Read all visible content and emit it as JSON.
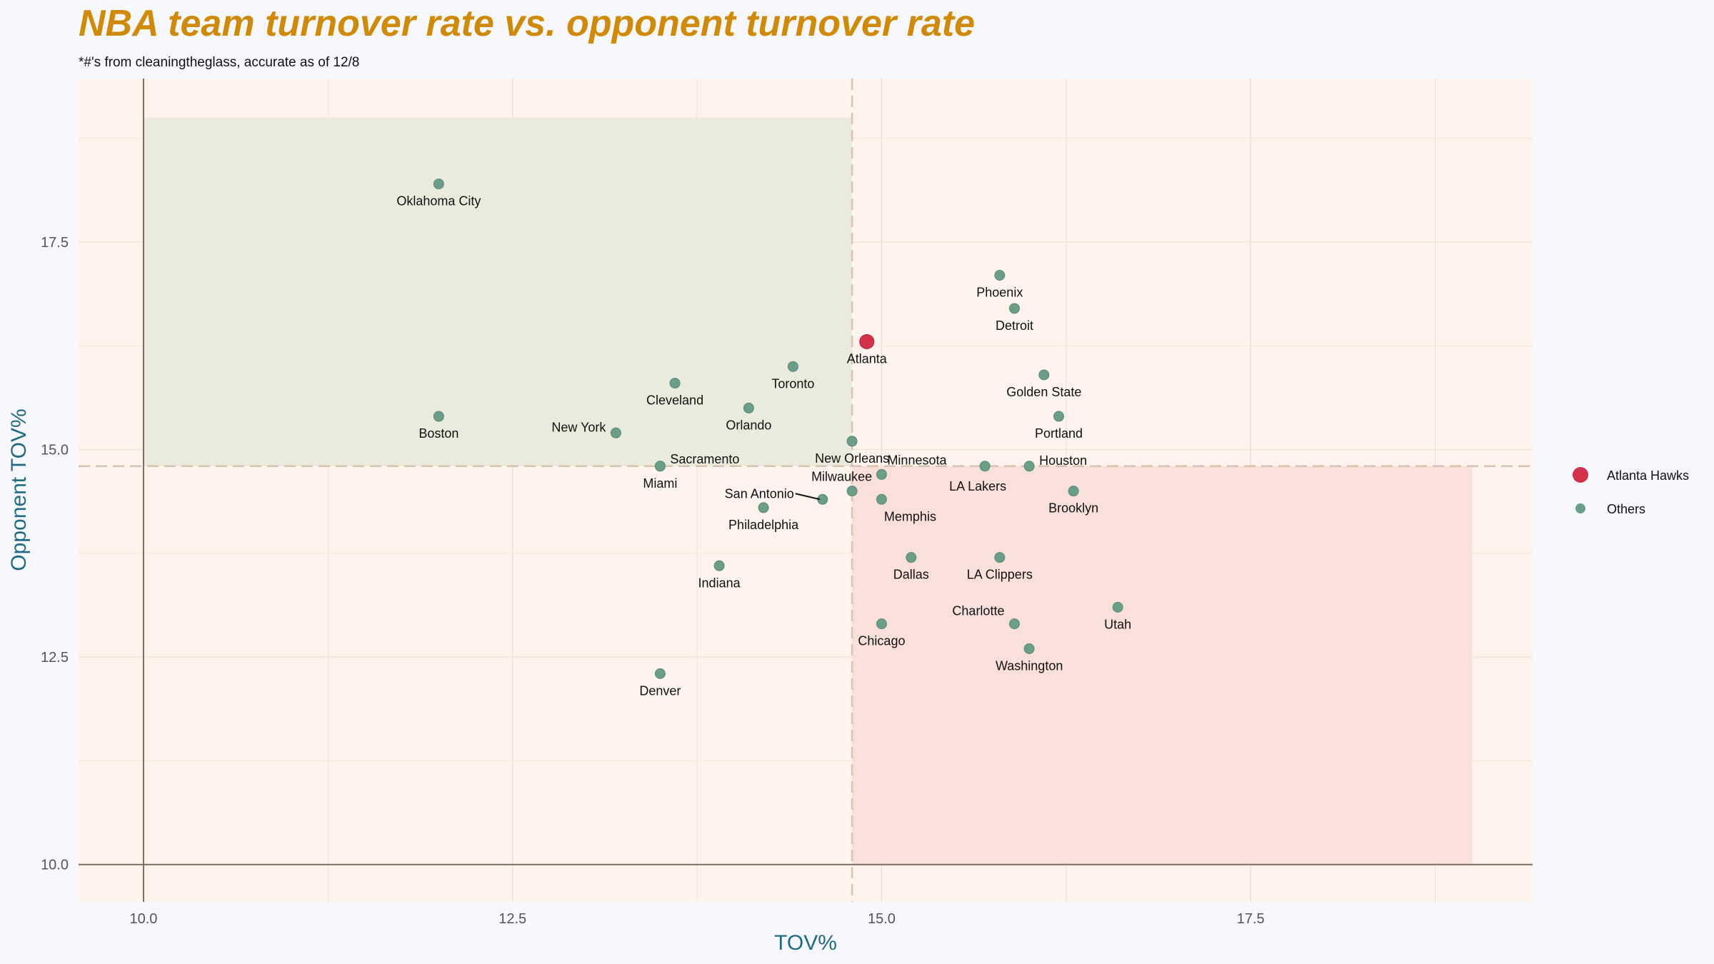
{
  "chart_data": {
    "type": "scatter",
    "title": "NBA team turnover rate vs. opponent turnover rate",
    "subtitle": "*#'s from cleaningtheglass, accurate as of 12/8",
    "xlabel": "TOV%",
    "ylabel": "Opponent TOV%",
    "xlim": [
      9.56,
      19.41
    ],
    "ylim": [
      9.55,
      19.47
    ],
    "xticks": [
      10.0,
      12.5,
      15.0,
      17.5
    ],
    "yticks": [
      10.0,
      12.5,
      15.0,
      17.5
    ],
    "xtick_labels": [
      "10.0",
      "12.5",
      "15.0",
      "17.5"
    ],
    "ytick_labels": [
      "10.0",
      "12.5",
      "15.0",
      "17.5"
    ],
    "grid": true,
    "reference_lines": {
      "x_mean": 14.8,
      "y_mean": 14.8
    },
    "shaded_regions": [
      {
        "name": "good",
        "x": [
          10,
          14.8
        ],
        "y": [
          14.8,
          19
        ],
        "color": "#e9ebdc"
      },
      {
        "name": "bad",
        "x": [
          14.8,
          19
        ],
        "y": [
          10,
          14.8
        ],
        "color": "#f9e0da"
      }
    ],
    "legend": {
      "placement": "right",
      "entries": [
        {
          "label": "Atlanta Hawks",
          "color": "#d3304a"
        },
        {
          "label": "Others",
          "color": "#6a9e88"
        }
      ]
    },
    "points": [
      {
        "team": "Oklahoma City",
        "x": 12.0,
        "y": 18.2
      },
      {
        "team": "Boston",
        "x": 12.0,
        "y": 15.4
      },
      {
        "team": "New York",
        "x": 13.2,
        "y": 15.2
      },
      {
        "team": "Miami",
        "x": 13.5,
        "y": 14.8
      },
      {
        "team": "Sacramento",
        "x": 13.5,
        "y": 14.8
      },
      {
        "team": "Cleveland",
        "x": 13.6,
        "y": 15.8
      },
      {
        "team": "Orlando",
        "x": 14.1,
        "y": 15.5
      },
      {
        "team": "Toronto",
        "x": 14.4,
        "y": 16.0
      },
      {
        "team": "Philadelphia",
        "x": 14.2,
        "y": 14.3
      },
      {
        "team": "Indiana",
        "x": 13.9,
        "y": 13.6
      },
      {
        "team": "Denver",
        "x": 13.5,
        "y": 12.3
      },
      {
        "team": "San Antonio",
        "x": 14.6,
        "y": 14.4
      },
      {
        "team": "Milwaukee",
        "x": 14.8,
        "y": 14.5
      },
      {
        "team": "New Orleans",
        "x": 14.8,
        "y": 15.1
      },
      {
        "team": "Atlanta",
        "x": 14.9,
        "y": 16.3,
        "highlight": true
      },
      {
        "team": "Minnesota",
        "x": 15.0,
        "y": 14.7
      },
      {
        "team": "Memphis",
        "x": 15.0,
        "y": 14.4
      },
      {
        "team": "Dallas",
        "x": 15.2,
        "y": 13.7
      },
      {
        "team": "Chicago",
        "x": 15.0,
        "y": 12.9
      },
      {
        "team": "Phoenix",
        "x": 15.8,
        "y": 17.1
      },
      {
        "team": "Detroit",
        "x": 15.9,
        "y": 16.7
      },
      {
        "team": "Golden State",
        "x": 16.1,
        "y": 15.9
      },
      {
        "team": "Portland",
        "x": 16.2,
        "y": 15.4
      },
      {
        "team": "LA Lakers",
        "x": 15.7,
        "y": 14.8
      },
      {
        "team": "Houston",
        "x": 16.0,
        "y": 14.8
      },
      {
        "team": "Brooklyn",
        "x": 16.3,
        "y": 14.5
      },
      {
        "team": "LA Clippers",
        "x": 15.8,
        "y": 13.7
      },
      {
        "team": "Charlotte",
        "x": 15.9,
        "y": 12.9
      },
      {
        "team": "Washington",
        "x": 16.0,
        "y": 12.6
      },
      {
        "team": "Utah",
        "x": 16.6,
        "y": 13.1
      }
    ]
  }
}
